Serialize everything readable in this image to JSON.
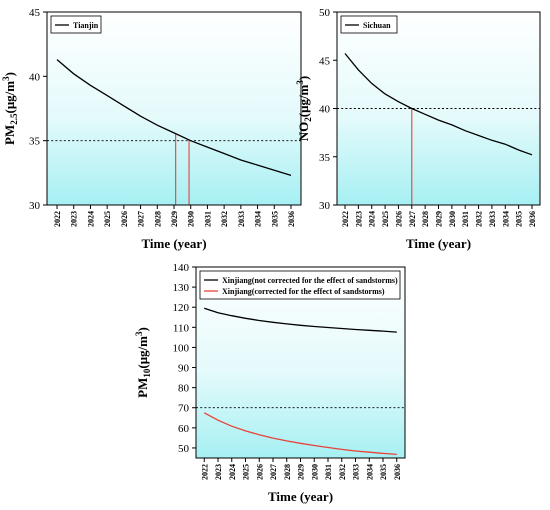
{
  "chart_data": [
    {
      "type": "line",
      "panel": "top-left",
      "xlabel": "Time (year)",
      "ylabel_main": "PM",
      "ylabel_sub": "2.5",
      "ylabel_unit": "(μg/m",
      "ylabel_sup": "3",
      "ylabel_close": ")",
      "ylim": [
        30,
        45
      ],
      "yticks": [
        "30",
        "35",
        "40",
        "45"
      ],
      "ytick_values": [
        30,
        35,
        40,
        45
      ],
      "x": [
        "2022",
        "2023",
        "2024",
        "2025",
        "2026",
        "2027",
        "2028",
        "2029",
        "2030",
        "2031",
        "2032",
        "2033",
        "2034",
        "2035",
        "2036"
      ],
      "series": [
        {
          "name": "Tianjin",
          "color": "#000000",
          "values": [
            41.3,
            40.2,
            39.3,
            38.5,
            37.7,
            36.9,
            36.2,
            35.6,
            35.0,
            34.5,
            34.0,
            33.5,
            33.1,
            32.7,
            32.3
          ]
        }
      ],
      "threshold": 35,
      "threshold_style": "dotted",
      "markers_x": [
        2029.1,
        2029.9
      ],
      "marker_color": "#e8413a",
      "legend": "top-left",
      "background_gradient": [
        "#ffffff",
        "#a6f0f3"
      ]
    },
    {
      "type": "line",
      "panel": "top-right",
      "xlabel": "Time (year)",
      "ylabel_main": "NO",
      "ylabel_sub": "2",
      "ylabel_unit": "(μg/m",
      "ylabel_sup": "3",
      "ylabel_close": ")",
      "ylim": [
        30,
        50
      ],
      "yticks": [
        "30",
        "35",
        "40",
        "45",
        "50"
      ],
      "ytick_values": [
        30,
        35,
        40,
        45,
        50
      ],
      "x": [
        "2022",
        "2023",
        "2024",
        "2025",
        "2026",
        "2027",
        "2028",
        "2029",
        "2030",
        "2031",
        "2032",
        "2033",
        "2034",
        "2035",
        "2036"
      ],
      "series": [
        {
          "name": "Sichuan",
          "color": "#000000",
          "values": [
            45.7,
            44.0,
            42.6,
            41.5,
            40.7,
            40.0,
            39.4,
            38.8,
            38.3,
            37.7,
            37.2,
            36.7,
            36.3,
            35.7,
            35.2
          ]
        }
      ],
      "threshold": 40,
      "threshold_style": "dotted",
      "markers_x": [
        2027
      ],
      "marker_color": "#e8413a",
      "legend": "top-left",
      "background_gradient": [
        "#ffffff",
        "#a6f0f3"
      ]
    },
    {
      "type": "line",
      "panel": "bottom-center",
      "xlabel": "Time (year)",
      "ylabel_main": "PM",
      "ylabel_sub": "10",
      "ylabel_unit": "(μg/m",
      "ylabel_sup": "3",
      "ylabel_close": ")",
      "ylim": [
        45,
        140
      ],
      "yticks": [
        "50",
        "60",
        "70",
        "80",
        "90",
        "100",
        "110",
        "120",
        "130",
        "140"
      ],
      "ytick_values": [
        50,
        60,
        70,
        80,
        90,
        100,
        110,
        120,
        130,
        140
      ],
      "x": [
        "2022",
        "2023",
        "2024",
        "2025",
        "2026",
        "2027",
        "2028",
        "2029",
        "2030",
        "2031",
        "2032",
        "2033",
        "2034",
        "2035",
        "2036"
      ],
      "series": [
        {
          "name": "Xinjiang(not corrected for the effect of sandstorms)",
          "color": "#000000",
          "values": [
            119.5,
            117.2,
            115.8,
            114.5,
            113.4,
            112.5,
            111.7,
            111.0,
            110.4,
            109.9,
            109.4,
            108.9,
            108.5,
            108.1,
            107.6
          ]
        },
        {
          "name": "Xinjiang(corrected for the effect of sandstorms)",
          "color": "#e8413a",
          "values": [
            67.5,
            63.8,
            60.8,
            58.5,
            56.6,
            54.9,
            53.5,
            52.3,
            51.2,
            50.2,
            49.3,
            48.5,
            47.9,
            47.3,
            46.8
          ]
        }
      ],
      "threshold": 70,
      "threshold_style": "dotted",
      "legend": "top-left",
      "background_gradient": [
        "#ffffff",
        "#a6f0f3"
      ]
    }
  ]
}
